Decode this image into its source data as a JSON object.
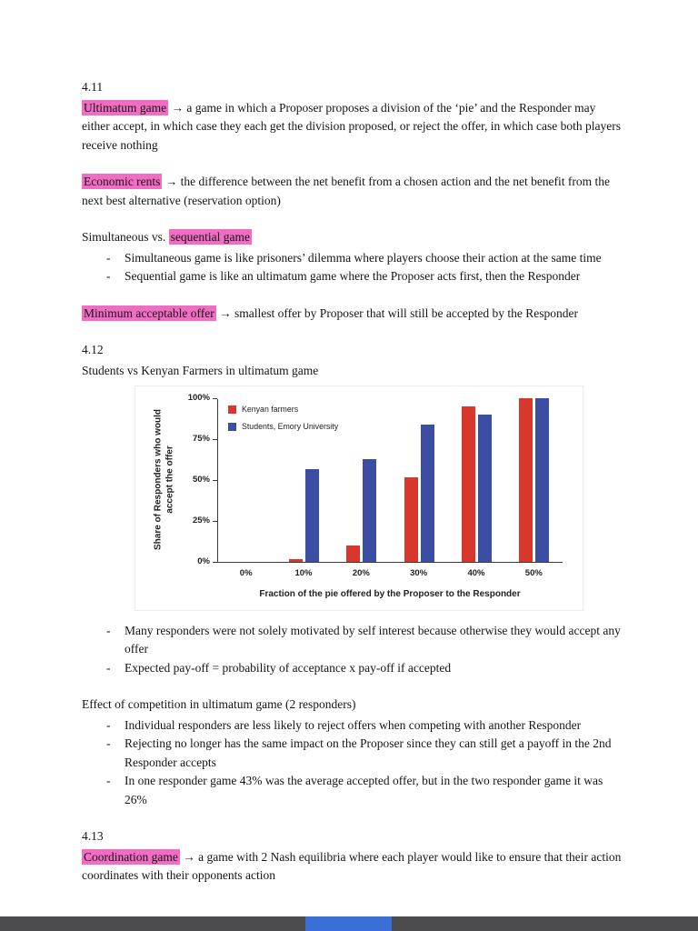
{
  "document": {
    "blocks": [
      {
        "type": "heading",
        "text": "4.11",
        "tight": true
      },
      {
        "type": "para",
        "segments": [
          {
            "text": "Ultimatum game",
            "highlight": true
          },
          {
            "text": " → a game in which a Proposer proposes a division of the ‘pie’ and the Responder may either accept, in which case they each get the division proposed, or reject the offer, in which case both players receive nothing",
            "highlight": false
          }
        ]
      },
      {
        "type": "para",
        "segments": [
          {
            "text": "Economic rents",
            "highlight": true
          },
          {
            "text": " → the difference between the net benefit from a chosen action and the net benefit from the next best alternative (reservation option)",
            "highlight": false
          }
        ]
      },
      {
        "type": "para",
        "tight": true,
        "segments": [
          {
            "text": "Simultaneous vs. ",
            "highlight": false
          },
          {
            "text": "sequential game",
            "highlight": true
          }
        ]
      },
      {
        "type": "bullets",
        "items": [
          "Simultaneous game is like prisoners’ dilemma where players choose their action at the same time",
          "Sequential game is like an ultimatum game where the Proposer acts first, then the Responder"
        ]
      },
      {
        "type": "para",
        "segments": [
          {
            "text": "Minimum acceptable offer",
            "highlight": true
          },
          {
            "text": " → smallest offer by Proposer that will still be accepted by the Responder",
            "highlight": false
          }
        ]
      },
      {
        "type": "heading",
        "text": "4.12",
        "tight": true
      },
      {
        "type": "para",
        "tight": true,
        "segments": [
          {
            "text": "Students vs Kenyan Farmers in ultimatum game",
            "highlight": false
          }
        ]
      },
      {
        "type": "chart"
      },
      {
        "type": "bullets",
        "items": [
          "Many responders were not solely motivated by self interest because otherwise they would accept any offer",
          "Expected pay-off = probability of acceptance x pay-off if accepted"
        ]
      },
      {
        "type": "para",
        "tight": true,
        "segments": [
          {
            "text": "Effect of competition in ultimatum game (2 responders)",
            "highlight": false
          }
        ]
      },
      {
        "type": "bullets",
        "items": [
          "Individual responders are less likely to reject offers when competing with another Responder",
          "Rejecting no longer has the same impact on the Proposer since they can still get a payoff in the 2nd Responder accepts",
          "In one responder game 43% was the average accepted offer, but in the two responder game it was 26%"
        ]
      },
      {
        "type": "heading",
        "text": "4.13",
        "tight": true
      },
      {
        "type": "para",
        "segments": [
          {
            "text": "Coordination game",
            "highlight": true
          },
          {
            "text": " → a game with 2 Nash equilibria where each player would like to ensure that their action coordinates with their opponents action",
            "highlight": false
          }
        ]
      }
    ]
  },
  "chart_data": {
    "type": "bar",
    "title": "",
    "categories": [
      "0%",
      "10%",
      "20%",
      "30%",
      "40%",
      "50%"
    ],
    "series": [
      {
        "name": "Kenyan farmers",
        "color": "#d9372b",
        "values": [
          0,
          2,
          10,
          52,
          95,
          100
        ]
      },
      {
        "name": "Students, Emory University",
        "color": "#3b4ea3",
        "values": [
          0,
          57,
          63,
          84,
          90,
          100
        ]
      }
    ],
    "xlabel": "Fraction of the pie offered by the Proposer to the Responder",
    "ylabel": "Share of Responders who would accept the offer",
    "yticks": [
      "0%",
      "25%",
      "50%",
      "75%",
      "100%"
    ],
    "ylim": [
      0,
      100
    ],
    "grid": false,
    "legend_position": "top-left"
  },
  "highlight_color": "#f16dc4",
  "viewer_footer": {
    "bar_color": "#4b4b4d",
    "accent_color": "#3a6fd8"
  }
}
